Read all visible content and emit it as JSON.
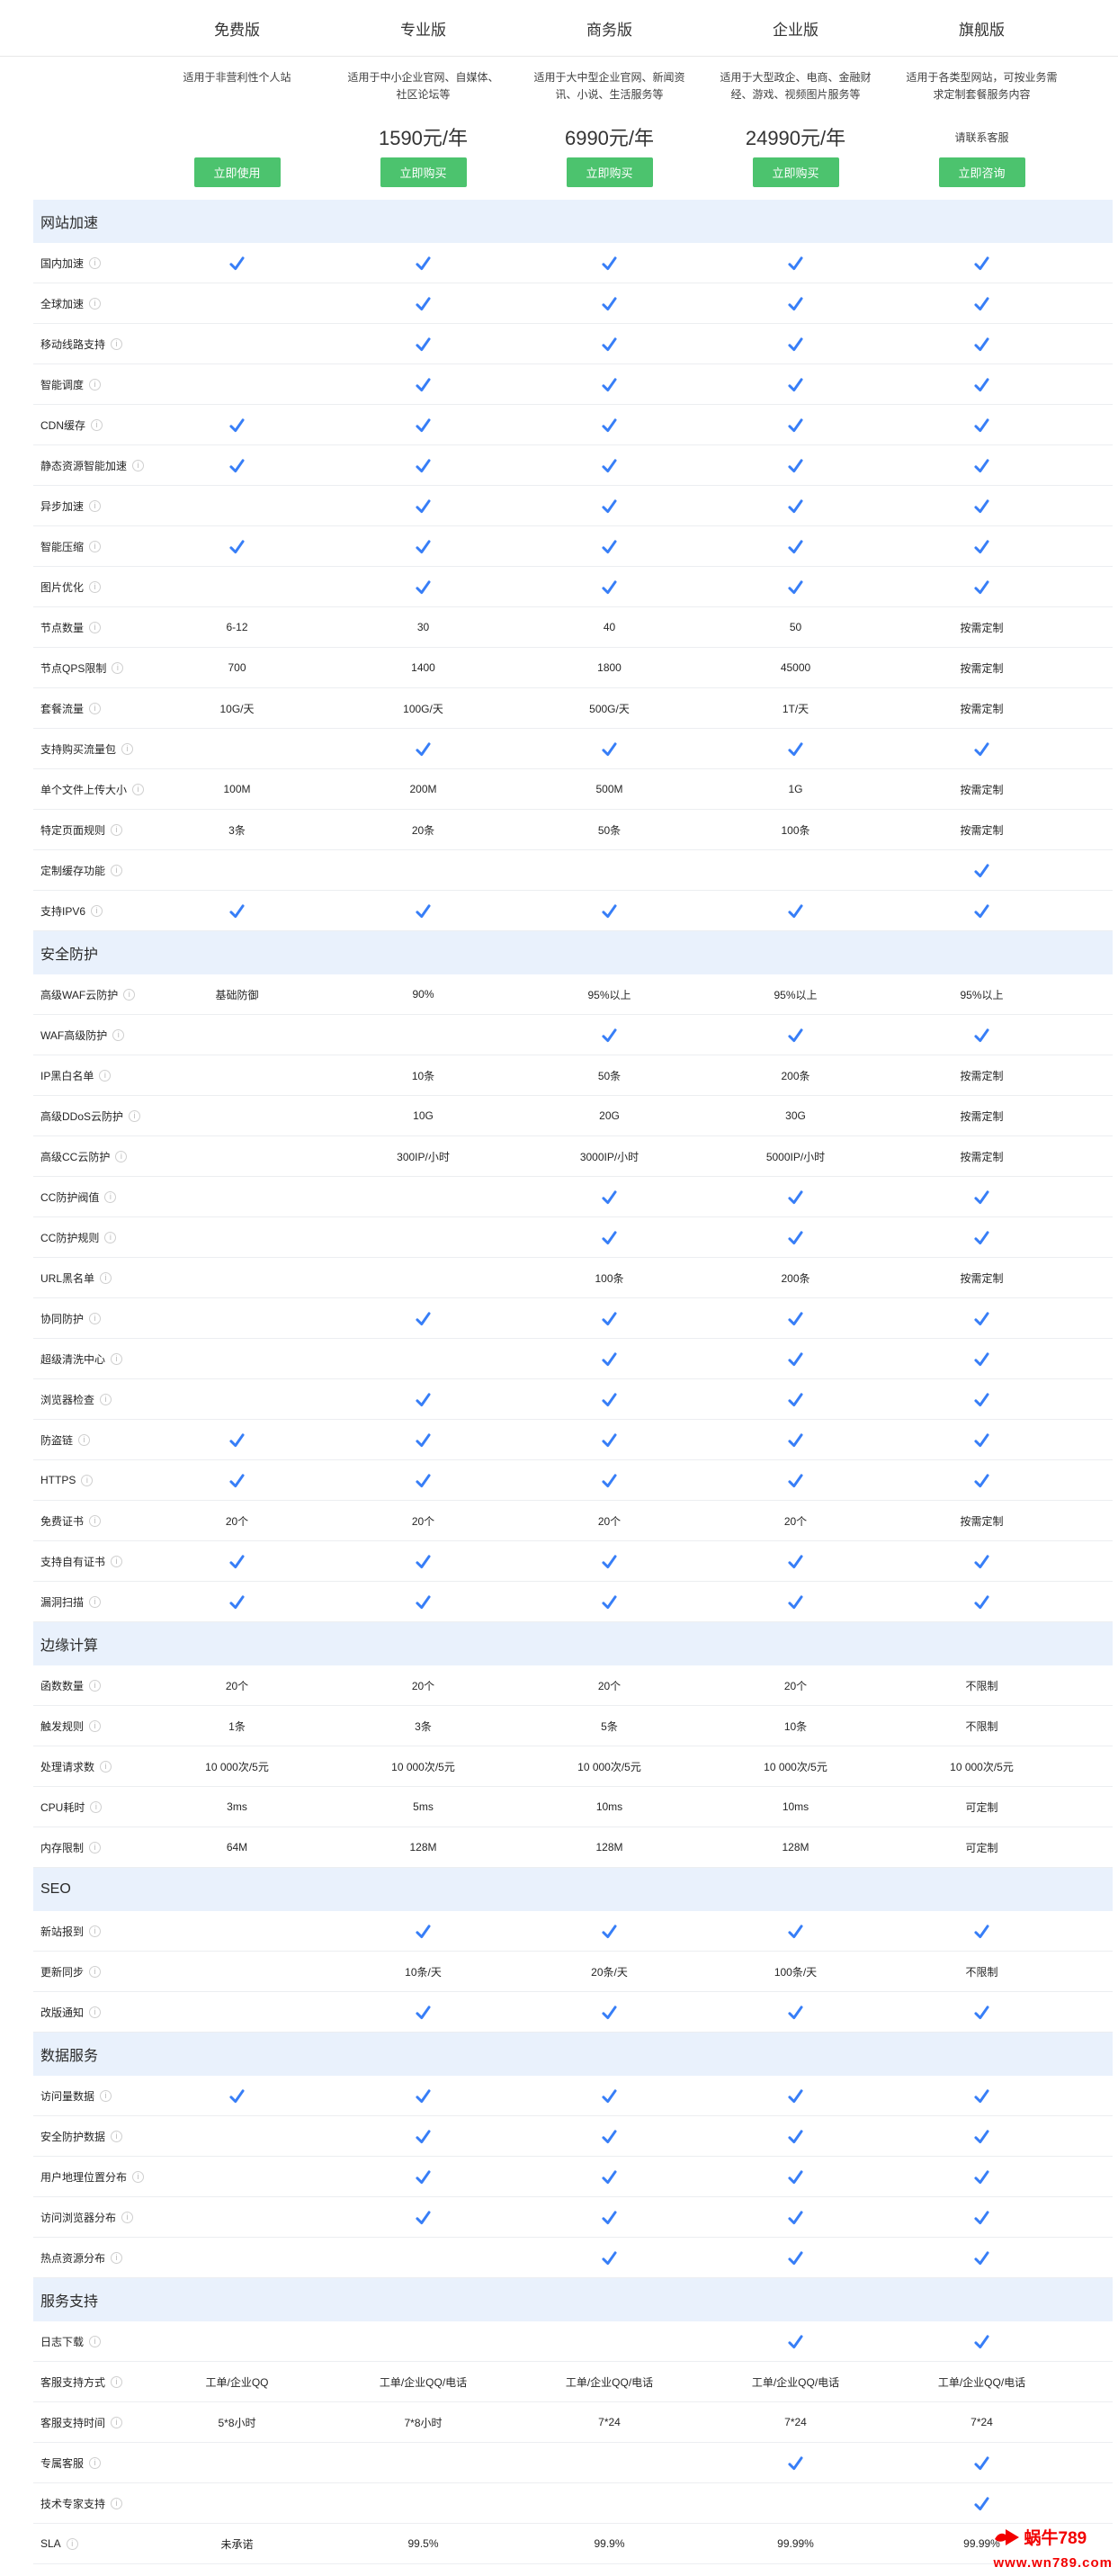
{
  "header": {
    "plans": [
      {
        "name": "免费版",
        "desc": "适用于非营利性个人站",
        "price": "",
        "price_small": false,
        "cta": "立即使用"
      },
      {
        "name": "专业版",
        "desc": "适用于中小企业官网、自媒体、社区论坛等",
        "price": "1590元/年",
        "price_small": false,
        "cta": "立即购买"
      },
      {
        "name": "商务版",
        "desc": "适用于大中型企业官网、新闻资讯、小说、生活服务等",
        "price": "6990元/年",
        "price_small": false,
        "cta": "立即购买"
      },
      {
        "name": "企业版",
        "desc": "适用于大型政企、电商、金融财经、游戏、视频图片服务等",
        "price": "24990元/年",
        "price_small": false,
        "cta": "立即购买"
      },
      {
        "name": "旗舰版",
        "desc": "适用于各类型网站，可按业务需求定制套餐服务内容",
        "price": "请联系客服",
        "price_small": true,
        "cta": "立即咨询"
      }
    ]
  },
  "table": {
    "check_marker": "check",
    "sections": [
      {
        "title": "网站加速",
        "rows": [
          {
            "label": "国内加速",
            "values": [
              "check",
              "check",
              "check",
              "check",
              "check"
            ]
          },
          {
            "label": "全球加速",
            "values": [
              "",
              "check",
              "check",
              "check",
              "check"
            ]
          },
          {
            "label": "移动线路支持",
            "values": [
              "",
              "check",
              "check",
              "check",
              "check"
            ]
          },
          {
            "label": "智能调度",
            "values": [
              "",
              "check",
              "check",
              "check",
              "check"
            ]
          },
          {
            "label": "CDN缓存",
            "values": [
              "check",
              "check",
              "check",
              "check",
              "check"
            ]
          },
          {
            "label": "静态资源智能加速",
            "values": [
              "check",
              "check",
              "check",
              "check",
              "check"
            ]
          },
          {
            "label": "异步加速",
            "values": [
              "",
              "check",
              "check",
              "check",
              "check"
            ]
          },
          {
            "label": "智能压缩",
            "values": [
              "check",
              "check",
              "check",
              "check",
              "check"
            ]
          },
          {
            "label": "图片优化",
            "values": [
              "",
              "check",
              "check",
              "check",
              "check"
            ]
          },
          {
            "label": "节点数量",
            "values": [
              "6-12",
              "30",
              "40",
              "50",
              "按需定制"
            ]
          },
          {
            "label": "节点QPS限制",
            "values": [
              "700",
              "1400",
              "1800",
              "45000",
              "按需定制"
            ]
          },
          {
            "label": "套餐流量",
            "values": [
              "10G/天",
              "100G/天",
              "500G/天",
              "1T/天",
              "按需定制"
            ]
          },
          {
            "label": "支持购买流量包",
            "values": [
              "",
              "check",
              "check",
              "check",
              "check"
            ]
          },
          {
            "label": "单个文件上传大小",
            "values": [
              "100M",
              "200M",
              "500M",
              "1G",
              "按需定制"
            ]
          },
          {
            "label": "特定页面规则",
            "values": [
              "3条",
              "20条",
              "50条",
              "100条",
              "按需定制"
            ]
          },
          {
            "label": "定制缓存功能",
            "values": [
              "",
              "",
              "",
              "",
              "check"
            ]
          },
          {
            "label": "支持IPV6",
            "values": [
              "check",
              "check",
              "check",
              "check",
              "check"
            ]
          }
        ]
      },
      {
        "title": "安全防护",
        "rows": [
          {
            "label": "高级WAF云防护",
            "values": [
              "基础防御",
              "90%",
              "95%以上",
              "95%以上",
              "95%以上"
            ]
          },
          {
            "label": "WAF高级防护",
            "values": [
              "",
              "",
              "check",
              "check",
              "check"
            ]
          },
          {
            "label": "IP黑白名单",
            "values": [
              "",
              "10条",
              "50条",
              "200条",
              "按需定制"
            ]
          },
          {
            "label": "高级DDoS云防护",
            "values": [
              "",
              "10G",
              "20G",
              "30G",
              "按需定制"
            ]
          },
          {
            "label": "高级CC云防护",
            "values": [
              "",
              "300IP/小时",
              "3000IP/小时",
              "5000IP/小时",
              "按需定制"
            ]
          },
          {
            "label": "CC防护阀值",
            "values": [
              "",
              "",
              "check",
              "check",
              "check"
            ]
          },
          {
            "label": "CC防护规则",
            "values": [
              "",
              "",
              "check",
              "check",
              "check"
            ]
          },
          {
            "label": "URL黑名单",
            "values": [
              "",
              "",
              "100条",
              "200条",
              "按需定制"
            ]
          },
          {
            "label": "协同防护",
            "values": [
              "",
              "check",
              "check",
              "check",
              "check"
            ]
          },
          {
            "label": "超级清洗中心",
            "values": [
              "",
              "",
              "check",
              "check",
              "check"
            ]
          },
          {
            "label": "浏览器检查",
            "values": [
              "",
              "check",
              "check",
              "check",
              "check"
            ]
          },
          {
            "label": "防盗链",
            "values": [
              "check",
              "check",
              "check",
              "check",
              "check"
            ]
          },
          {
            "label": "HTTPS",
            "values": [
              "check",
              "check",
              "check",
              "check",
              "check"
            ]
          },
          {
            "label": "免费证书",
            "values": [
              "20个",
              "20个",
              "20个",
              "20个",
              "按需定制"
            ]
          },
          {
            "label": "支持自有证书",
            "values": [
              "check",
              "check",
              "check",
              "check",
              "check"
            ]
          },
          {
            "label": "漏洞扫描",
            "values": [
              "check",
              "check",
              "check",
              "check",
              "check"
            ]
          }
        ]
      },
      {
        "title": "边缘计算",
        "rows": [
          {
            "label": "函数数量",
            "values": [
              "20个",
              "20个",
              "20个",
              "20个",
              "不限制"
            ]
          },
          {
            "label": "触发规则",
            "values": [
              "1条",
              "3条",
              "5条",
              "10条",
              "不限制"
            ]
          },
          {
            "label": "处理请求数",
            "values": [
              "10 000次/5元",
              "10 000次/5元",
              "10 000次/5元",
              "10 000次/5元",
              "10 000次/5元"
            ]
          },
          {
            "label": "CPU耗时",
            "values": [
              "3ms",
              "5ms",
              "10ms",
              "10ms",
              "可定制"
            ]
          },
          {
            "label": "内存限制",
            "values": [
              "64M",
              "128M",
              "128M",
              "128M",
              "可定制"
            ]
          }
        ]
      },
      {
        "title": "SEO",
        "rows": [
          {
            "label": "新站报到",
            "values": [
              "",
              "check",
              "check",
              "check",
              "check"
            ]
          },
          {
            "label": "更新同步",
            "values": [
              "",
              "10条/天",
              "20条/天",
              "100条/天",
              "不限制"
            ]
          },
          {
            "label": "改版通知",
            "values": [
              "",
              "check",
              "check",
              "check",
              "check"
            ]
          }
        ]
      },
      {
        "title": "数据服务",
        "rows": [
          {
            "label": "访问量数据",
            "values": [
              "check",
              "check",
              "check",
              "check",
              "check"
            ]
          },
          {
            "label": "安全防护数据",
            "values": [
              "",
              "check",
              "check",
              "check",
              "check"
            ]
          },
          {
            "label": "用户地理位置分布",
            "values": [
              "",
              "check",
              "check",
              "check",
              "check"
            ]
          },
          {
            "label": "访问浏览器分布",
            "values": [
              "",
              "check",
              "check",
              "check",
              "check"
            ]
          },
          {
            "label": "热点资源分布",
            "values": [
              "",
              "",
              "check",
              "check",
              "check"
            ]
          }
        ]
      },
      {
        "title": "服务支持",
        "rows": [
          {
            "label": "日志下载",
            "values": [
              "",
              "",
              "",
              "check",
              "check"
            ]
          },
          {
            "label": "客服支持方式",
            "values": [
              "工单/企业QQ",
              "工单/企业QQ/电话",
              "工单/企业QQ/电话",
              "工单/企业QQ/电话",
              "工单/企业QQ/电话"
            ]
          },
          {
            "label": "客服支持时间",
            "values": [
              "5*8小时",
              "7*8小时",
              "7*24",
              "7*24",
              "7*24"
            ]
          },
          {
            "label": "专属客服",
            "values": [
              "",
              "",
              "",
              "check",
              "check"
            ]
          },
          {
            "label": "技术专家支持",
            "values": [
              "",
              "",
              "",
              "",
              "check"
            ]
          },
          {
            "label": "SLA",
            "values": [
              "未承诺",
              "99.5%",
              "99.9%",
              "99.99%",
              "99.99%"
            ]
          }
        ]
      }
    ]
  },
  "watermark": {
    "title": "蜗牛789",
    "url": "www.wn789.com"
  },
  "colors": {
    "accent_blue": "#377EF7",
    "button_green": "#4CC36E",
    "section_header_bg": "#E9F1FC",
    "watermark_red": "#F20000"
  },
  "icons": {
    "check": "check-icon",
    "info": "info-icon",
    "logo": "snail-logo-icon"
  }
}
